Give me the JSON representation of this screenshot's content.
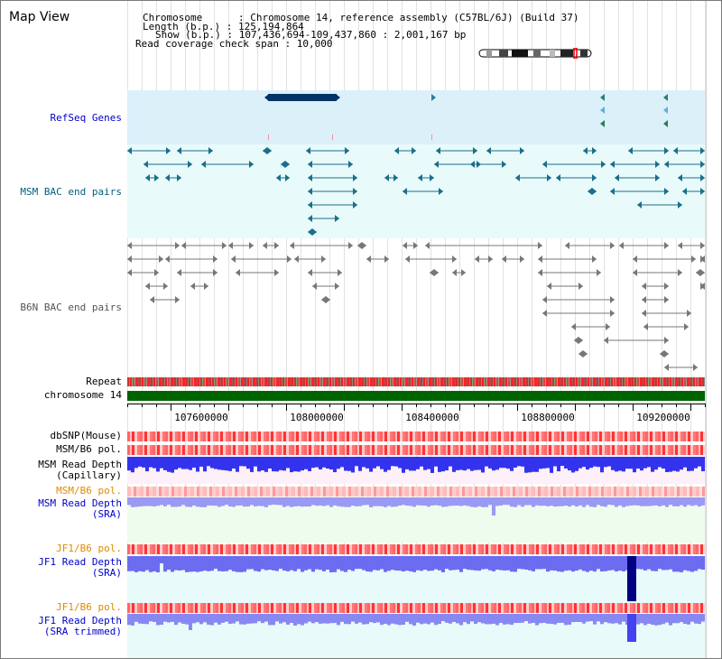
{
  "app": {
    "title": "Map View"
  },
  "header": {
    "line1": "Chromosome      : Chromosome 14, reference assembly (C57BL/6J) (Build 37)",
    "line2": "Length (b.p.) : 125,194,864",
    "line3": "Show (b.p.) : 107,436,694-109,437,860 : 2,001,167 bp",
    "line4": "Read coverage check span : 10,000"
  },
  "tracks": {
    "refseq": "RefSeq Genes",
    "msm_bac": "MSM BAC end pairs",
    "b6n_bac": "B6N BAC end pairs",
    "repeat": "Repeat",
    "chromosome": "chromosome 14",
    "dbsnp": "dbSNP(Mouse)",
    "msm_b6_pol_1": "MSM/B6 pol.",
    "msm_read_depth_cap_1": "MSM Read Depth",
    "msm_read_depth_cap_2": "(Capillary)",
    "msm_b6_pol_2": "MSM/B6 pol.",
    "msm_read_depth_sra_1": "MSM Read Depth",
    "msm_read_depth_sra_2": "(SRA)",
    "jf1_b6_pol_1": "JF1/B6 pol.",
    "jf1_read_depth_sra_1": "JF1 Read Depth",
    "jf1_read_depth_sra_2": "(SRA)",
    "jf1_b6_pol_2": "JF1/B6 pol.",
    "jf1_read_depth_trim_1": "JF1 Read Depth",
    "jf1_read_depth_trim_2": "(SRA trimmed)"
  },
  "axis": {
    "ticks": [
      "107600000",
      "108000000",
      "108400000",
      "108800000",
      "109200000"
    ]
  },
  "colors": {
    "refseq_bg": "#dcf0fa",
    "msm_bac_bg": "#e8fafa",
    "chromosome_bar": "#006400",
    "depth_blue": "#3333ee",
    "depth_light_blue": "#9a9af5",
    "depth_dark": "#000080"
  },
  "icons": {
    "ideogram": "chromosome-ideogram-icon"
  }
}
